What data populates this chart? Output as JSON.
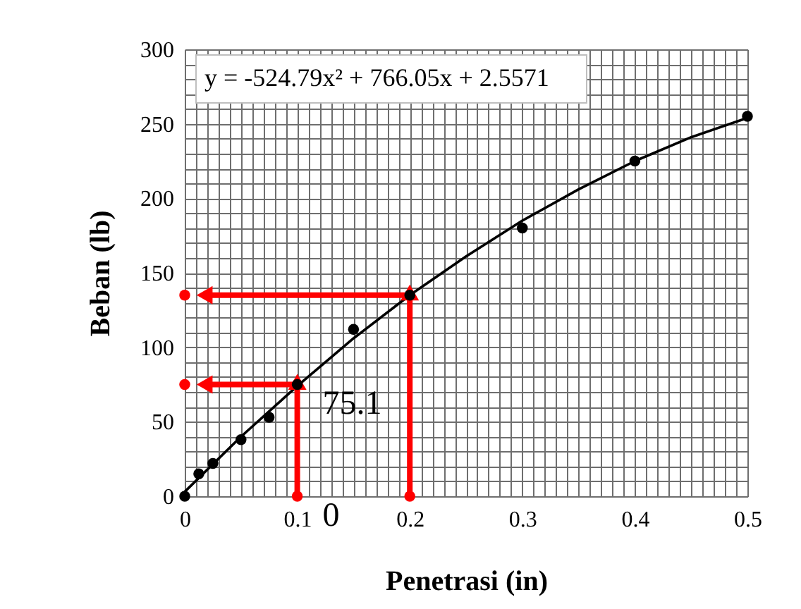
{
  "chart_data": {
    "type": "scatter",
    "xlabel": "Penetrasi (in)",
    "ylabel": "Beban (lb)",
    "xlim": [
      0,
      0.5
    ],
    "ylim": [
      0,
      300
    ],
    "xticks": [
      0,
      {
        "value": 0.01,
        "label": null
      },
      {
        "value": 0.02,
        "label": null
      },
      {
        "value": 0.03,
        "label": null
      },
      {
        "value": 0.04,
        "label": null
      },
      {
        "value": 0.05,
        "label": null
      },
      {
        "value": 0.06,
        "label": null
      },
      {
        "value": 0.07,
        "label": null
      },
      {
        "value": 0.08,
        "label": null
      },
      {
        "value": 0.09,
        "label": null
      },
      0.1,
      {
        "value": 0.11,
        "label": null
      },
      {
        "value": 0.12,
        "label": null
      },
      {
        "value": 0.13,
        "label": null
      },
      {
        "value": 0.14,
        "label": null
      },
      {
        "value": 0.15,
        "label": null
      },
      {
        "value": 0.16,
        "label": null
      },
      {
        "value": 0.17,
        "label": null
      },
      {
        "value": 0.18,
        "label": null
      },
      {
        "value": 0.19,
        "label": null
      },
      0.2,
      {
        "value": 0.21,
        "label": null
      },
      {
        "value": 0.22,
        "label": null
      },
      {
        "value": 0.23,
        "label": null
      },
      {
        "value": 0.24,
        "label": null
      },
      {
        "value": 0.25,
        "label": null
      },
      {
        "value": 0.26,
        "label": null
      },
      {
        "value": 0.27,
        "label": null
      },
      {
        "value": 0.28,
        "label": null
      },
      {
        "value": 0.29,
        "label": null
      },
      0.3,
      {
        "value": 0.31,
        "label": null
      },
      {
        "value": 0.32,
        "label": null
      },
      {
        "value": 0.33,
        "label": null
      },
      {
        "value": 0.34,
        "label": null
      },
      {
        "value": 0.35,
        "label": null
      },
      {
        "value": 0.36,
        "label": null
      },
      {
        "value": 0.37,
        "label": null
      },
      {
        "value": 0.38,
        "label": null
      },
      {
        "value": 0.39,
        "label": null
      },
      0.4,
      {
        "value": 0.41,
        "label": null
      },
      {
        "value": 0.42,
        "label": null
      },
      {
        "value": 0.43,
        "label": null
      },
      {
        "value": 0.44,
        "label": null
      },
      {
        "value": 0.45,
        "label": null
      },
      {
        "value": 0.46,
        "label": null
      },
      {
        "value": 0.47,
        "label": null
      },
      {
        "value": 0.48,
        "label": null
      },
      {
        "value": 0.49,
        "label": null
      },
      0.5
    ],
    "yticks": [
      0,
      {
        "value": 10,
        "label": null
      },
      {
        "value": 20,
        "label": null
      },
      {
        "value": 30,
        "label": null
      },
      {
        "value": 40,
        "label": null
      },
      50,
      {
        "value": 60,
        "label": null
      },
      {
        "value": 70,
        "label": null
      },
      {
        "value": 80,
        "label": null
      },
      {
        "value": 90,
        "label": null
      },
      100,
      {
        "value": 110,
        "label": null
      },
      {
        "value": 120,
        "label": null
      },
      {
        "value": 130,
        "label": null
      },
      {
        "value": 140,
        "label": null
      },
      150,
      {
        "value": 160,
        "label": null
      },
      {
        "value": 170,
        "label": null
      },
      {
        "value": 180,
        "label": null
      },
      {
        "value": 190,
        "label": null
      },
      200,
      {
        "value": 210,
        "label": null
      },
      {
        "value": 220,
        "label": null
      },
      {
        "value": 230,
        "label": null
      },
      {
        "value": 240,
        "label": null
      },
      250,
      {
        "value": 260,
        "label": null
      },
      {
        "value": 270,
        "label": null
      },
      {
        "value": 280,
        "label": null
      },
      {
        "value": 290,
        "label": null
      },
      300
    ],
    "grid": true,
    "marker": "circle",
    "series": [
      {
        "type": "line",
        "color": "#000000",
        "marker": "none",
        "x": [
          0,
          0.05,
          0.1,
          0.15,
          0.2,
          0.25,
          0.3,
          0.35,
          0.4,
          0.45,
          0.5
        ],
        "values": [
          3,
          40,
          74,
          106,
          135,
          161,
          185,
          206,
          225,
          241,
          254
        ]
      },
      {
        "color": "#000000",
        "x": [
          0,
          0.0125,
          0.025,
          0.05,
          0.075,
          0.1,
          0.15,
          0.2,
          0.3,
          0.4,
          0.5
        ],
        "values": [
          0,
          15,
          22,
          38,
          53,
          75,
          112,
          135,
          180,
          225,
          255
        ]
      },
      {
        "type": "line",
        "color": "#ff0000",
        "marker": "triangle",
        "x": [
          0.1,
          0.1
        ],
        "values": [
          0,
          75
        ]
      },
      {
        "type": "line",
        "color": "#ff0000",
        "marker": "triangle",
        "x": [
          0.2,
          0.2
        ],
        "values": [
          0,
          135
        ]
      },
      {
        "type": "line",
        "color": "#ff0000",
        "marker": "triangle",
        "x": [
          0.1,
          0.02
        ],
        "values": [
          75,
          75
        ]
      },
      {
        "type": "line",
        "color": "#ff0000",
        "marker": "triangle",
        "x": [
          0.2,
          0.02
        ],
        "values": [
          135,
          135
        ]
      },
      {
        "color": "#ff0000",
        "x": [
          0.1,
          0.2,
          0,
          0
        ],
        "values": [
          0,
          0,
          75,
          135
        ]
      }
    ],
    "annotations": [
      "y = -524.79x² + 766.05x + 2.5571",
      {
        "text": "75.1",
        "x": 0.1,
        "y": 75.1
      },
      {
        "text": "0",
        "x": 0.1,
        "y": 0
      }
    ]
  }
}
